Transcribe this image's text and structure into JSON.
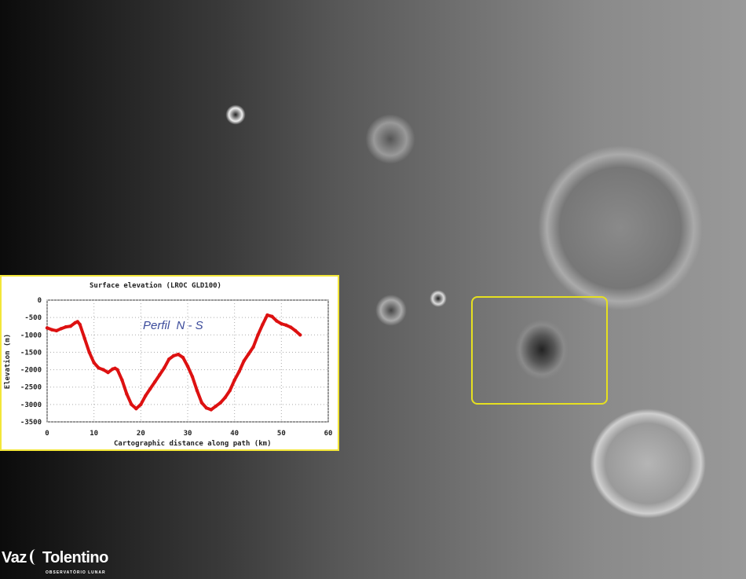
{
  "logo": {
    "text_left": "Vaz",
    "text_right": "Tolentino",
    "subtitle": "OBSERVATÓRIO LUNAR"
  },
  "highlight_color": "#e6e020",
  "chart_data": {
    "type": "line",
    "title": "Surface elevation (LROC GLD100)",
    "xlabel": "Cartographic distance along path (km)",
    "ylabel": "Elevation (m)",
    "annotation": "Perfil  N - S",
    "xlim": [
      0,
      60
    ],
    "ylim": [
      -3500,
      0
    ],
    "xticks": [
      0,
      10,
      20,
      30,
      40,
      50,
      60
    ],
    "yticks": [
      0,
      -500,
      -1000,
      -1500,
      -2000,
      -2500,
      -3000,
      -3500
    ],
    "grid": true,
    "series_color": "#dd1111",
    "x": [
      0,
      1,
      2,
      3,
      4,
      5,
      6,
      6.5,
      7,
      8,
      9,
      10,
      11,
      12,
      13,
      14,
      14.5,
      15,
      16,
      17,
      18,
      19,
      20,
      21,
      22,
      23,
      24,
      25,
      26,
      27,
      28,
      29,
      30,
      31,
      32,
      33,
      34,
      35,
      36,
      37,
      38,
      39,
      40,
      41,
      42,
      43,
      44,
      45,
      46,
      47,
      48,
      49,
      50,
      51,
      52,
      53,
      54
    ],
    "y": [
      -800,
      -850,
      -880,
      -820,
      -770,
      -750,
      -650,
      -620,
      -700,
      -1100,
      -1500,
      -1800,
      -1950,
      -2000,
      -2080,
      -1980,
      -1960,
      -2000,
      -2300,
      -2700,
      -3000,
      -3120,
      -3000,
      -2750,
      -2550,
      -2350,
      -2150,
      -1950,
      -1700,
      -1600,
      -1560,
      -1650,
      -1900,
      -2200,
      -2600,
      -2950,
      -3100,
      -3150,
      -3050,
      -2950,
      -2800,
      -2600,
      -2300,
      -2050,
      -1750,
      -1550,
      -1350,
      -1000,
      -700,
      -430,
      -470,
      -600,
      -680,
      -720,
      -780,
      -880,
      -1000
    ]
  }
}
